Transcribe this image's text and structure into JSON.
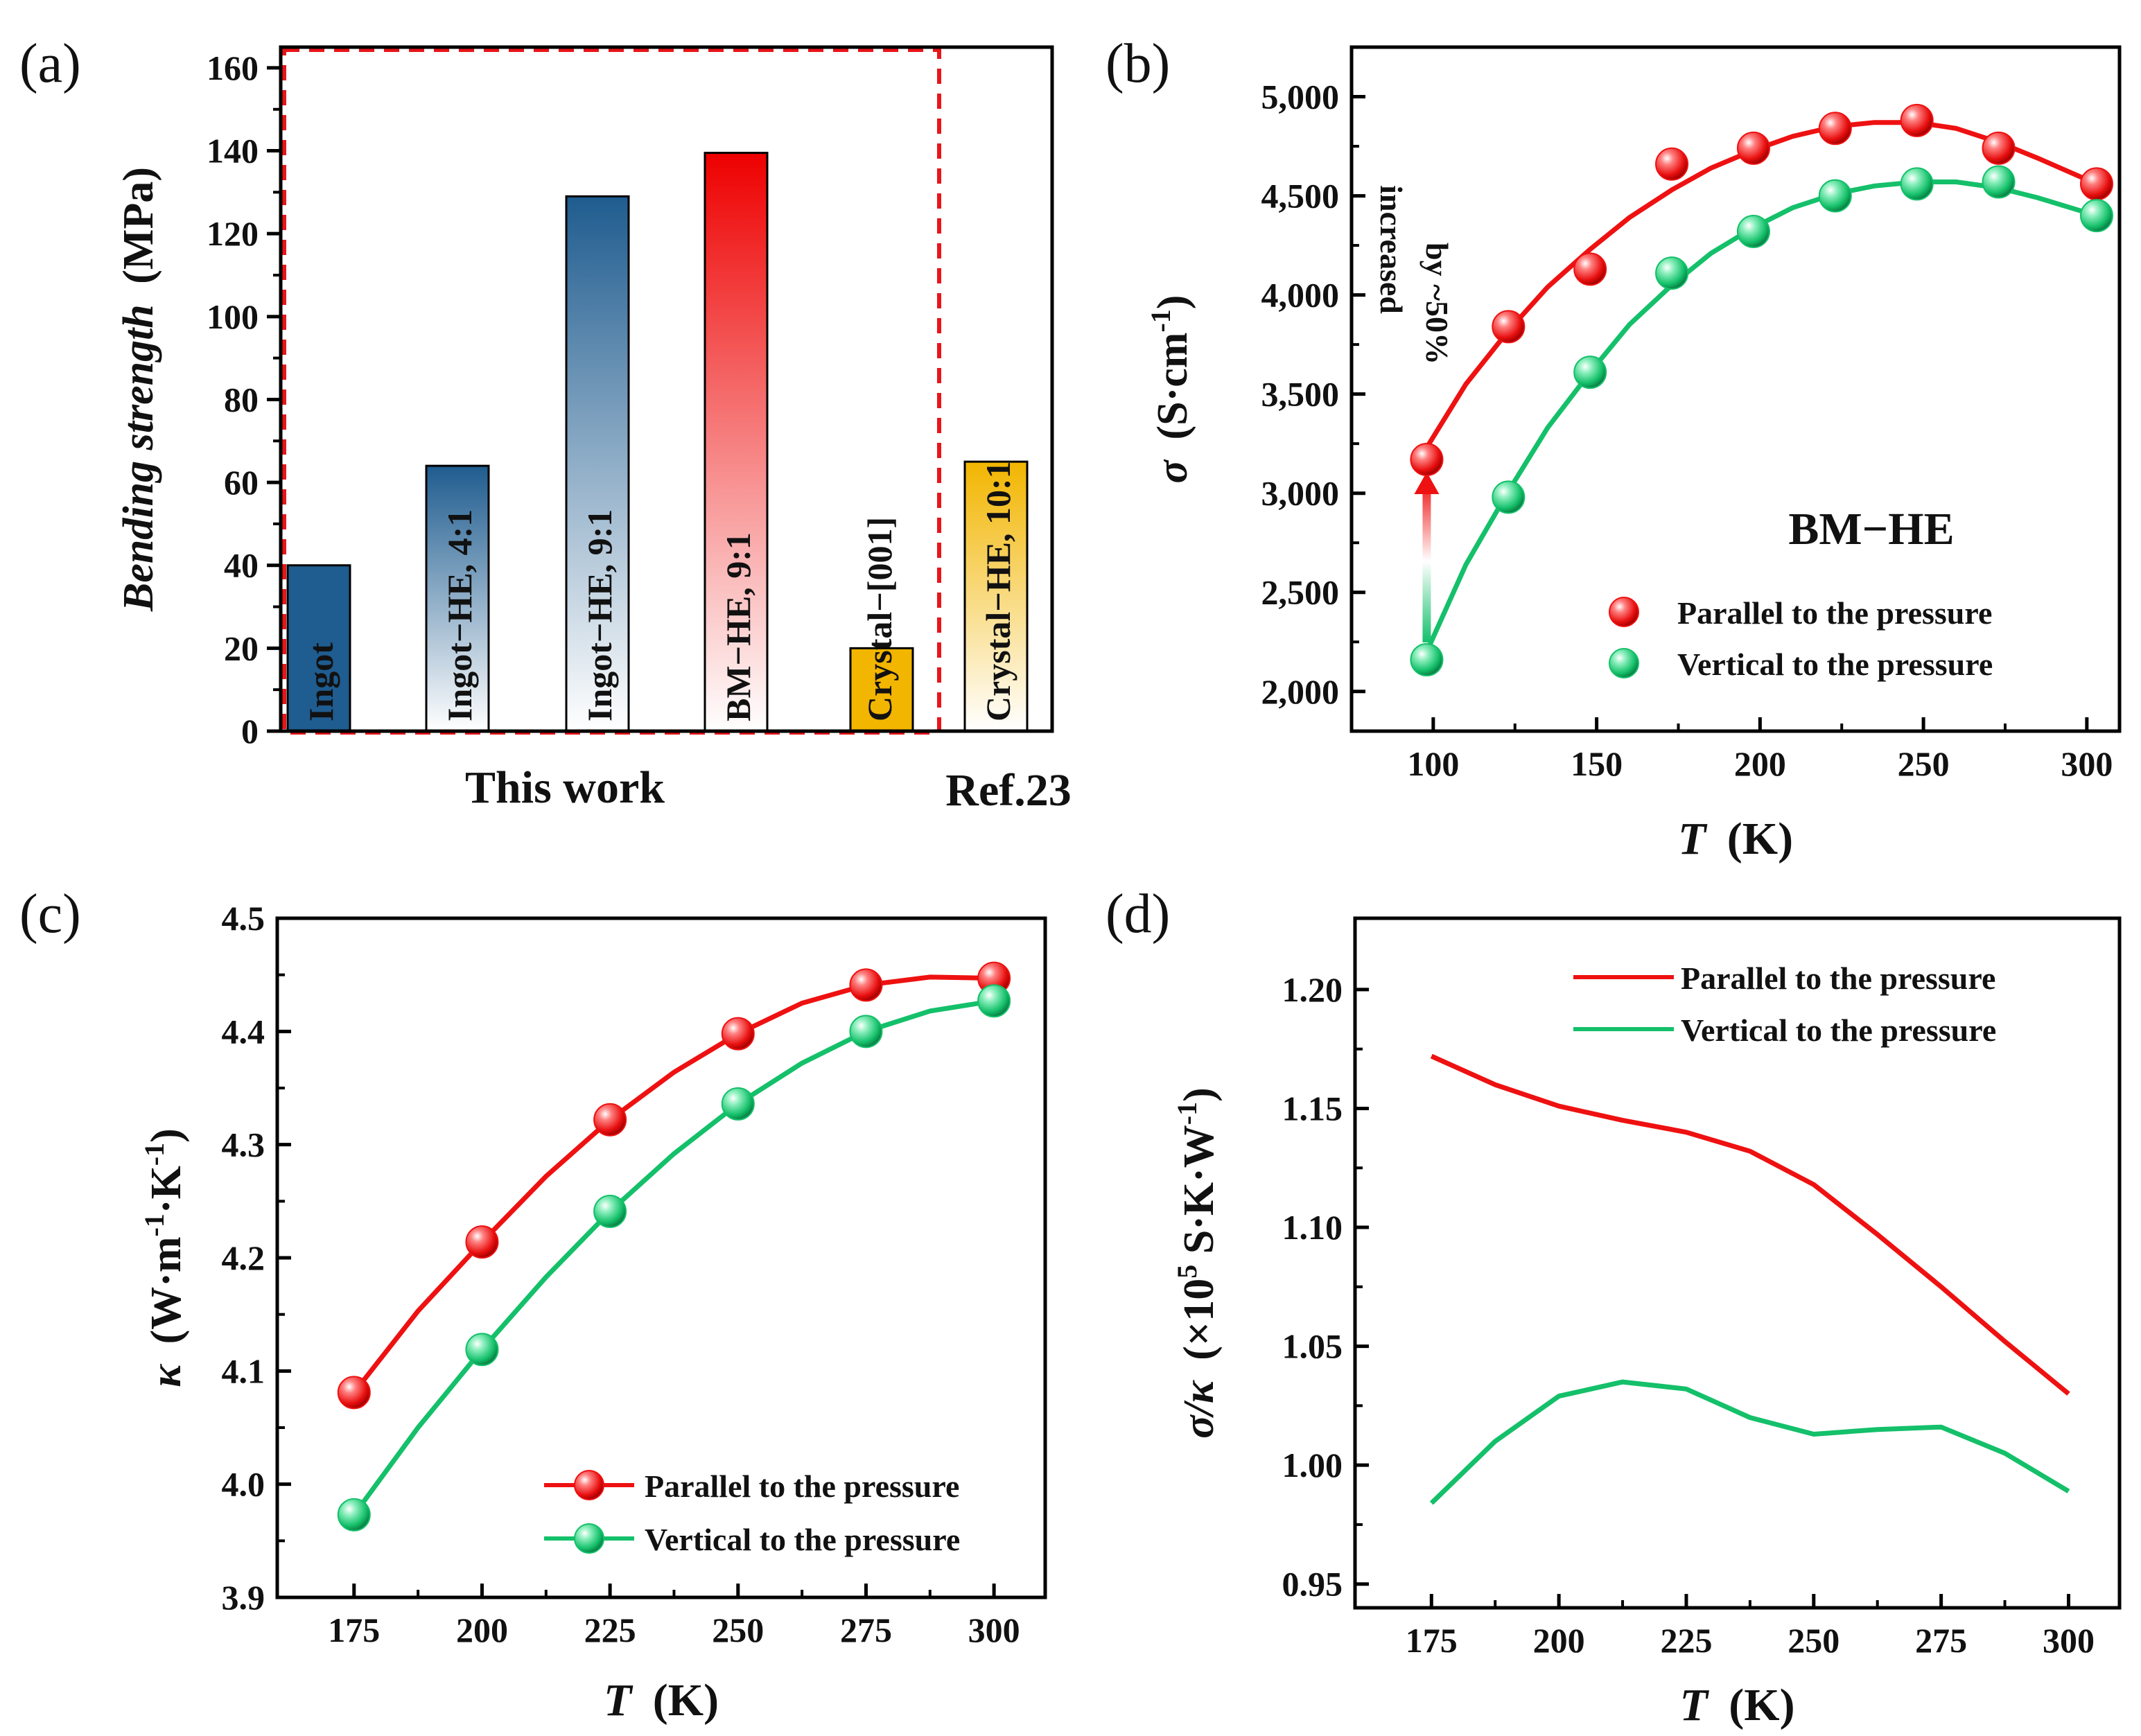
{
  "panel_labels": [
    "(a)",
    "(b)",
    "(c)",
    "(d)"
  ],
  "colors": {
    "red": "#ee1111",
    "green": "#14c06a",
    "blue": "#1f5c8f",
    "gold": "#f2b500",
    "orange": "#f08a1a",
    "dashed_box": "#e8151a"
  },
  "chart_data": [
    {
      "panel": "(a)",
      "type": "bar",
      "ylabel_italic": "Bending strength",
      "ylabel_unit": "(MPa)",
      "ylim": [
        0,
        165
      ],
      "yticks": [
        0,
        20,
        40,
        60,
        80,
        100,
        120,
        140,
        160
      ],
      "categories": [
        "Ingot",
        "Ingot−HE, 4:1",
        "Ingot−HE, 9:1",
        "BM−HE, 9:1",
        "Crystal−[001]",
        "Crystal−HE, 10:1"
      ],
      "values": [
        40,
        64,
        129,
        139.5,
        20,
        65
      ],
      "fill_styles": [
        "blue-solid",
        "blue-fade",
        "blue-fade",
        "red-fade",
        "gold-solid",
        "gold-fade"
      ],
      "group_labels": {
        "this_work": "This work",
        "reference": "Ref.23"
      }
    },
    {
      "panel": "(b)",
      "type": "scatter",
      "ylabel_symbol": "σ",
      "ylabel_unit": "(S·cm",
      "ylabel_exp": "-1",
      "ylabel_close": ")",
      "xlabel_symbol": "T",
      "xlabel_unit": "(K)",
      "xlim": [
        75,
        310
      ],
      "ylim": [
        1800,
        5250
      ],
      "xticks": [
        100,
        150,
        200,
        250,
        300
      ],
      "yticks": [
        2000,
        2500,
        3000,
        3500,
        4000,
        4500,
        5000
      ],
      "ytick_labels": [
        "2,000",
        "2,500",
        "3,000",
        "3,500",
        "4,000",
        "4,500",
        "5,000"
      ],
      "annotation_title": "BM−HE",
      "annotation_line1": "increased",
      "annotation_line2": "by ~50%",
      "series": [
        {
          "name": "Parallel to the pressure",
          "color": "red",
          "x": [
            98,
            123,
            148,
            173,
            198,
            223,
            248,
            273,
            303
          ],
          "y": [
            3170,
            3840,
            4130,
            4660,
            4740,
            4840,
            4880,
            4740,
            4560
          ],
          "fit_x": [
            98,
            110,
            123,
            135,
            148,
            160,
            173,
            185,
            198,
            210,
            223,
            235,
            248,
            260,
            273,
            285,
            303
          ],
          "fit_y": [
            3230,
            3550,
            3820,
            4040,
            4230,
            4390,
            4530,
            4640,
            4730,
            4800,
            4850,
            4870,
            4870,
            4840,
            4770,
            4690,
            4560
          ]
        },
        {
          "name": "Vertical to the pressure",
          "color": "green",
          "x": [
            98,
            123,
            148,
            173,
            198,
            223,
            248,
            273,
            303
          ],
          "y": [
            2160,
            2980,
            3610,
            4110,
            4320,
            4500,
            4560,
            4570,
            4400
          ],
          "fit_x": [
            98,
            110,
            123,
            135,
            148,
            160,
            173,
            185,
            198,
            210,
            223,
            235,
            248,
            260,
            273,
            285,
            303
          ],
          "fit_y": [
            2200,
            2640,
            3010,
            3330,
            3610,
            3850,
            4050,
            4210,
            4340,
            4440,
            4510,
            4550,
            4570,
            4570,
            4540,
            4490,
            4400
          ]
        }
      ]
    },
    {
      "panel": "(c)",
      "type": "line",
      "ylabel_symbol": "κ",
      "ylabel_unit": "(W·m",
      "ylabel_exp1": "-1",
      "ylabel_mid": "·K",
      "ylabel_exp2": "-1",
      "ylabel_close": ")",
      "xlabel_symbol": "T",
      "xlabel_unit": "(K)",
      "xlim": [
        160,
        310
      ],
      "ylim": [
        3.9,
        4.5
      ],
      "xticks": [
        175,
        200,
        225,
        250,
        275,
        300
      ],
      "yticks": [
        3.9,
        4.0,
        4.1,
        4.2,
        4.3,
        4.4,
        4.5
      ],
      "ytick_labels": [
        "3.9",
        "4.0",
        "4.1",
        "4.2",
        "4.3",
        "4.4",
        "4.5"
      ],
      "series": [
        {
          "name": "Parallel to the pressure",
          "color": "red",
          "x": [
            175,
            200,
            225,
            250,
            275,
            300
          ],
          "y": [
            4.081,
            4.214,
            4.322,
            4.398,
            4.441,
            4.447
          ],
          "fit_x": [
            175,
            187.5,
            200,
            212.5,
            225,
            237.5,
            250,
            262.5,
            275,
            287.5,
            300
          ],
          "fit_y": [
            4.081,
            4.153,
            4.214,
            4.272,
            4.322,
            4.364,
            4.398,
            4.425,
            4.441,
            4.448,
            4.447
          ]
        },
        {
          "name": "Vertical to the pressure",
          "color": "green",
          "x": [
            175,
            200,
            225,
            250,
            275,
            300
          ],
          "y": [
            3.973,
            4.119,
            4.241,
            4.336,
            4.4,
            4.427
          ],
          "fit_x": [
            175,
            187.5,
            200,
            212.5,
            225,
            237.5,
            250,
            262.5,
            275,
            287.5,
            300
          ],
          "fit_y": [
            3.973,
            4.05,
            4.119,
            4.183,
            4.241,
            4.292,
            4.336,
            4.372,
            4.4,
            4.418,
            4.427
          ]
        }
      ]
    },
    {
      "panel": "(d)",
      "type": "line",
      "ylabel_symbol": "σ/κ",
      "ylabel_unit": "(×10",
      "ylabel_exp1": "5",
      "ylabel_mid": " S·K·W",
      "ylabel_exp2": "-1",
      "ylabel_close": ")",
      "xlabel_symbol": "T",
      "xlabel_unit": "(K)",
      "xlim": [
        160,
        310
      ],
      "ylim": [
        0.94,
        1.23
      ],
      "xticks": [
        175,
        200,
        225,
        250,
        275,
        300
      ],
      "yticks": [
        0.95,
        1.0,
        1.05,
        1.1,
        1.15,
        1.2
      ],
      "ytick_labels": [
        "0.95",
        "1.00",
        "1.05",
        "1.10",
        "1.15",
        "1.20"
      ],
      "series": [
        {
          "name": "Parallel to the pressure",
          "color": "red",
          "x": [
            175,
            187.5,
            200,
            212.5,
            225,
            237.5,
            250,
            262.5,
            275,
            287.5,
            300
          ],
          "y": [
            1.172,
            1.16,
            1.151,
            1.145,
            1.14,
            1.132,
            1.118,
            1.097,
            1.075,
            1.052,
            1.03
          ]
        },
        {
          "name": "Vertical to the pressure",
          "color": "green",
          "x": [
            175,
            187.5,
            200,
            212.5,
            225,
            237.5,
            250,
            262.5,
            275,
            287.5,
            300
          ],
          "y": [
            0.984,
            1.01,
            1.029,
            1.035,
            1.032,
            1.02,
            1.013,
            1.015,
            1.016,
            1.005,
            0.989
          ]
        }
      ]
    }
  ]
}
